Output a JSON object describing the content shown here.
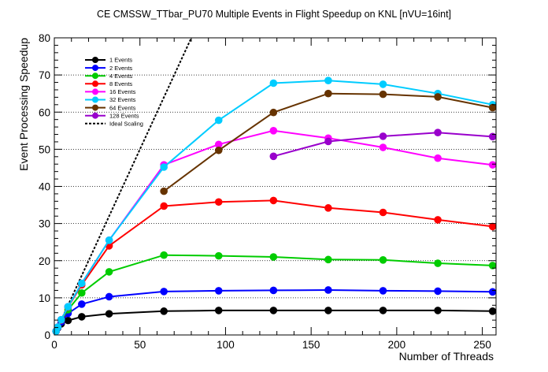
{
  "chart_data": {
    "type": "line",
    "title": "CE CMSSW_TTbar_PU70 Multiple Events in Flight Speedup on KNL [nVU=16int]",
    "xlabel": "Number of Threads",
    "ylabel": "Event Processing Speedup",
    "xlim": [
      0,
      258
    ],
    "ylim": [
      0,
      80
    ],
    "x_ticks": [
      0,
      50,
      100,
      150,
      200,
      250
    ],
    "y_ticks": [
      0,
      10,
      20,
      30,
      40,
      50,
      60,
      70,
      80
    ],
    "grid": "horizontal dotted",
    "legend_position": "top-left",
    "series": [
      {
        "name": "1 Events",
        "color": "#000000",
        "x": [
          1,
          2,
          4,
          8,
          16,
          32,
          64,
          96,
          128,
          160,
          192,
          224,
          256
        ],
        "y": [
          1.0,
          1.9,
          3.0,
          3.9,
          4.9,
          5.7,
          6.4,
          6.6,
          6.6,
          6.6,
          6.6,
          6.6,
          6.4
        ]
      },
      {
        "name": "2 Events",
        "color": "#0000ff",
        "x": [
          1,
          2,
          4,
          8,
          16,
          32,
          64,
          96,
          128,
          160,
          192,
          224,
          256
        ],
        "y": [
          1.0,
          2.0,
          3.5,
          5.8,
          8.3,
          10.3,
          11.7,
          11.9,
          12.0,
          12.1,
          11.9,
          11.8,
          11.6
        ]
      },
      {
        "name": "4 Events",
        "color": "#00cc00",
        "x": [
          1,
          2,
          4,
          8,
          16,
          32,
          64,
          96,
          128,
          160,
          192,
          224,
          256
        ],
        "y": [
          1.0,
          2.1,
          4.0,
          6.8,
          11.3,
          17.0,
          21.5,
          21.3,
          21.0,
          20.3,
          20.2,
          19.3,
          18.7
        ]
      },
      {
        "name": "8 Events",
        "color": "#ff0000",
        "x": [
          1,
          2,
          4,
          8,
          16,
          32,
          64,
          96,
          128,
          160,
          192,
          224,
          256
        ],
        "y": [
          1.0,
          2.1,
          4.0,
          7.5,
          13.5,
          24.0,
          34.7,
          35.8,
          36.2,
          34.2,
          33.0,
          31.0,
          29.2
        ]
      },
      {
        "name": "16 Events",
        "color": "#ff00ff",
        "x": [
          1,
          2,
          4,
          8,
          16,
          32,
          64,
          96,
          128,
          160,
          192,
          224,
          256
        ],
        "y": [
          1.0,
          2.1,
          4.1,
          7.6,
          13.9,
          25.5,
          45.8,
          51.3,
          55.0,
          53.0,
          50.5,
          47.6,
          45.8
        ]
      },
      {
        "name": "32 Events",
        "color": "#00ccff",
        "x": [
          1,
          2,
          4,
          8,
          16,
          32,
          64,
          96,
          128,
          160,
          192,
          224,
          256
        ],
        "y": [
          1.0,
          2.1,
          4.1,
          7.6,
          13.9,
          25.5,
          45.2,
          57.8,
          67.8,
          68.5,
          67.5,
          65.0,
          62.0
        ]
      },
      {
        "name": "64 Events",
        "color": "#663300",
        "x": [
          64,
          96,
          128,
          160,
          192,
          224,
          256
        ],
        "y": [
          38.7,
          49.7,
          59.9,
          65.0,
          64.8,
          64.1,
          61.2
        ]
      },
      {
        "name": "128 Events",
        "color": "#9900cc",
        "x": [
          128,
          160,
          192,
          224,
          256
        ],
        "y": [
          48.1,
          52.1,
          53.5,
          54.5,
          53.4
        ]
      },
      {
        "name": "Ideal Scaling",
        "color": "#000000",
        "style": "dotted",
        "markers": false,
        "x": [
          1,
          80
        ],
        "y": [
          1,
          80
        ]
      }
    ]
  }
}
